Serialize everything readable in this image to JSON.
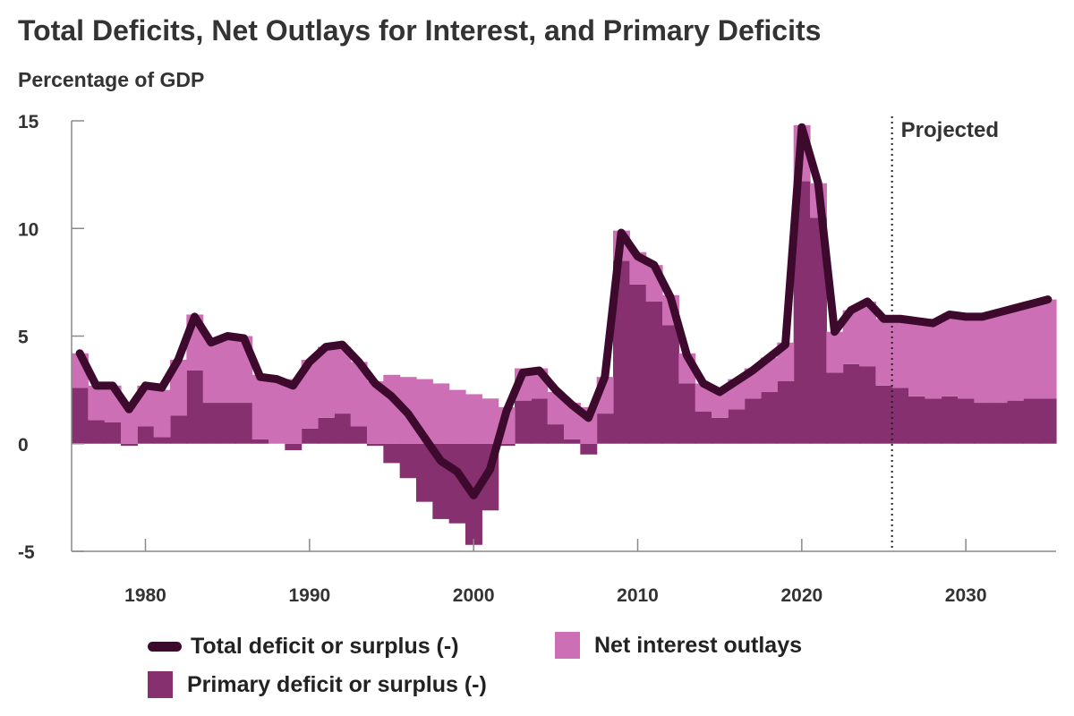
{
  "title": "Total Deficits, Net Outlays for Interest, and Primary Deficits",
  "units_label": "Percentage of GDP",
  "legend": {
    "total": "Total deficit or surplus (-)",
    "interest": "Net interest outlays",
    "primary": "Primary deficit or surplus (-)"
  },
  "colors": {
    "total": "#3d0a2e",
    "interest": "#cc6fb4",
    "primary": "#87306f",
    "axis": "#8a8a8a"
  },
  "chart_data": {
    "type": "area",
    "title": "Total Deficits, Net Outlays for Interest, and Primary Deficits",
    "ylabel": "Percentage of GDP",
    "xlabel": "",
    "ylim": [
      -5,
      15
    ],
    "xlim": [
      1976,
      2036
    ],
    "yticks": [
      "15",
      "10",
      "5",
      "0",
      "-5"
    ],
    "xticks": [
      "1980",
      "1990",
      "2000",
      "2010",
      "2020",
      "2030"
    ],
    "projection_label": "Projected",
    "projection_start": 2025.5,
    "x": [
      1976,
      1977,
      1978,
      1979,
      1980,
      1981,
      1982,
      1983,
      1984,
      1985,
      1986,
      1987,
      1988,
      1989,
      1990,
      1991,
      1992,
      1993,
      1994,
      1995,
      1996,
      1997,
      1998,
      1999,
      2000,
      2001,
      2002,
      2003,
      2004,
      2005,
      2006,
      2007,
      2008,
      2009,
      2010,
      2011,
      2012,
      2013,
      2014,
      2015,
      2016,
      2017,
      2018,
      2019,
      2020,
      2021,
      2022,
      2023,
      2024,
      2025,
      2026,
      2027,
      2028,
      2029,
      2030,
      2031,
      2032,
      2033,
      2034,
      2035
    ],
    "series": [
      {
        "name": "Primary deficit or surplus (-)",
        "kind": "bar",
        "values": [
          2.6,
          1.1,
          1.0,
          -0.1,
          0.8,
          0.3,
          1.3,
          3.4,
          1.9,
          1.9,
          1.9,
          0.2,
          0.0,
          -0.3,
          0.7,
          1.2,
          1.4,
          0.8,
          -0.1,
          -0.9,
          -1.6,
          -2.7,
          -3.5,
          -3.7,
          -4.7,
          -3.1,
          -0.1,
          2.0,
          2.1,
          0.9,
          0.2,
          -0.5,
          1.4,
          8.5,
          7.4,
          6.6,
          5.5,
          2.8,
          1.5,
          1.2,
          1.6,
          2.1,
          2.4,
          2.9,
          12.2,
          10.5,
          3.3,
          3.7,
          3.6,
          2.7,
          2.6,
          2.2,
          2.1,
          2.2,
          2.1,
          1.9,
          1.9,
          2.0,
          2.1,
          2.1
        ]
      },
      {
        "name": "Net interest outlays",
        "kind": "stack",
        "values": [
          1.6,
          1.6,
          1.7,
          1.8,
          1.9,
          2.2,
          2.6,
          2.6,
          3.0,
          3.1,
          3.1,
          3.0,
          2.9,
          3.0,
          3.2,
          3.3,
          3.1,
          3.0,
          2.9,
          3.2,
          3.1,
          3.0,
          2.8,
          2.5,
          2.3,
          2.1,
          1.7,
          1.5,
          1.4,
          1.5,
          1.7,
          1.7,
          1.7,
          1.4,
          1.5,
          1.7,
          1.4,
          1.4,
          1.3,
          1.3,
          1.4,
          1.4,
          1.6,
          1.8,
          2.6,
          1.6,
          1.9,
          2.5,
          3.0,
          3.1,
          3.2,
          3.5,
          3.6,
          3.8,
          3.9,
          4.0,
          4.2,
          4.3,
          4.4,
          4.6
        ]
      },
      {
        "name": "Total deficit or surplus (-)",
        "kind": "line",
        "values": [
          4.2,
          2.7,
          2.7,
          1.6,
          2.7,
          2.6,
          3.9,
          5.9,
          4.7,
          5.0,
          4.9,
          3.1,
          3.0,
          2.7,
          3.8,
          4.5,
          4.6,
          3.8,
          2.8,
          2.2,
          1.4,
          0.3,
          -0.8,
          -1.3,
          -2.4,
          -1.2,
          1.5,
          3.3,
          3.4,
          2.5,
          1.8,
          1.2,
          3.1,
          9.8,
          8.7,
          8.3,
          6.8,
          4.1,
          2.8,
          2.4,
          2.9,
          3.4,
          4.0,
          4.6,
          14.7,
          12.1,
          5.2,
          6.2,
          6.6,
          5.8,
          5.8,
          5.7,
          5.6,
          6.0,
          5.9,
          5.9,
          6.1,
          6.3,
          6.5,
          6.7
        ]
      }
    ],
    "grid": false,
    "legend_position": "bottom"
  }
}
